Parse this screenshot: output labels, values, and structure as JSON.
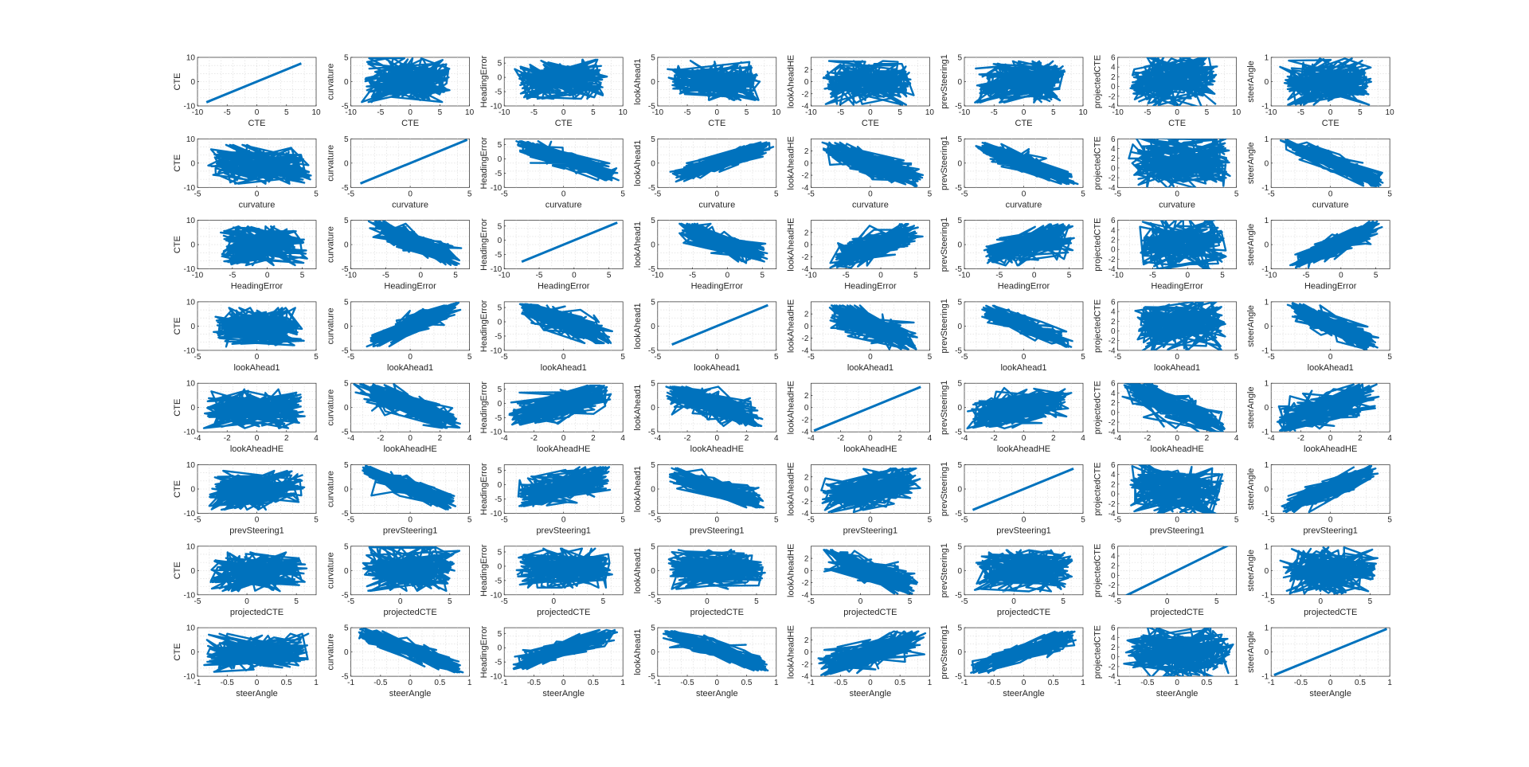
{
  "chart_data": {
    "type": "scatter",
    "layout": "scatter-matrix",
    "rows": 8,
    "cols": 8,
    "marker_color": "#0072BD",
    "grid": true,
    "variables": [
      {
        "name": "CTE",
        "range": [
          -10,
          10
        ],
        "ticks_x": [
          -10,
          -5,
          0,
          5,
          10
        ],
        "ticks_y": [
          -10,
          0,
          10
        ]
      },
      {
        "name": "curvature",
        "range": [
          -5,
          5
        ],
        "ticks_x": [
          -5,
          0,
          5
        ],
        "ticks_y": [
          -5,
          0,
          5
        ]
      },
      {
        "name": "HeadingError",
        "range": [
          -10,
          7
        ],
        "ticks_x": [
          -10,
          -5,
          0,
          5
        ],
        "ticks_y": [
          -10,
          -5,
          0,
          5
        ]
      },
      {
        "name": "lookAhead1",
        "range": [
          -5,
          5
        ],
        "ticks_x": [
          -5,
          0,
          5
        ],
        "ticks_y": [
          -5,
          0,
          5
        ]
      },
      {
        "name": "lookAheadHE",
        "range": [
          -4,
          4
        ],
        "ticks_x": [
          -4,
          -2,
          0,
          2,
          4
        ],
        "ticks_y": [
          -4,
          -2,
          0,
          2
        ]
      },
      {
        "name": "prevSteering1",
        "range": [
          -5,
          5
        ],
        "ticks_x": [
          -5,
          0,
          5
        ],
        "ticks_y": [
          -5,
          0,
          5
        ]
      },
      {
        "name": "projectedCTE",
        "range": [
          -4,
          6
        ],
        "ticks_x": [
          -5,
          0,
          5
        ],
        "ticks_y": [
          -4,
          -2,
          0,
          2,
          4,
          6
        ]
      },
      {
        "name": "steerAngle",
        "range": [
          -1,
          1
        ],
        "ticks_x": [
          -1,
          -0.5,
          0,
          0.5,
          1
        ],
        "ticks_y": [
          -1,
          0,
          1
        ]
      }
    ],
    "x_axis_ranges": {
      "CTE": [
        -10,
        10
      ],
      "curvature": [
        -5,
        5
      ],
      "HeadingError": [
        -10,
        7
      ],
      "lookAhead1": [
        -5,
        5
      ],
      "lookAheadHE": [
        -4,
        4
      ],
      "prevSteering1": [
        -5,
        5
      ],
      "projectedCTE": [
        -5,
        7
      ],
      "steerAngle": [
        -1,
        1
      ]
    },
    "data_extents": {
      "CTE": [
        -8.5,
        7.5
      ],
      "curvature": [
        -4.2,
        4.8
      ],
      "HeadingError": [
        -7.5,
        6.2
      ],
      "lookAhead1": [
        -3.8,
        4.3
      ],
      "lookAheadHE": [
        -3.8,
        3.4
      ],
      "prevSteering1": [
        -4.3,
        4.2
      ],
      "projectedCTE": [
        -4.2,
        6.2
      ],
      "steerAngle": [
        -0.95,
        0.95
      ]
    },
    "relations": {
      "curvature|HeadingError": -0.85,
      "curvature|lookAhead1": 0.9,
      "curvature|lookAheadHE": -0.8,
      "curvature|prevSteering1": -0.9,
      "curvature|steerAngle": -0.93,
      "HeadingError|lookAhead1": -0.75,
      "HeadingError|lookAheadHE": 0.7,
      "HeadingError|prevSteering1": 0.6,
      "HeadingError|steerAngle": 0.88,
      "lookAhead1|lookAheadHE": -0.75,
      "lookAhead1|prevSteering1": -0.85,
      "lookAhead1|steerAngle": -0.88,
      "lookAheadHE|prevSteering1": 0.55,
      "lookAheadHE|projectedCTE": -0.8,
      "lookAheadHE|steerAngle": 0.7,
      "prevSteering1|steerAngle": 0.9,
      "CTE|curvature": 0.0,
      "CTE|HeadingError": 0.0,
      "CTE|lookAhead1": 0.0,
      "CTE|lookAheadHE": 0.0,
      "CTE|prevSteering1": 0.2,
      "CTE|projectedCTE": 0.15,
      "CTE|steerAngle": 0.15,
      "curvature|projectedCTE": 0.0,
      "HeadingError|projectedCTE": 0.0,
      "lookAhead1|projectedCTE": 0.1,
      "prevSteering1|projectedCTE": 0.0,
      "projectedCTE|steerAngle": 0.0
    }
  }
}
